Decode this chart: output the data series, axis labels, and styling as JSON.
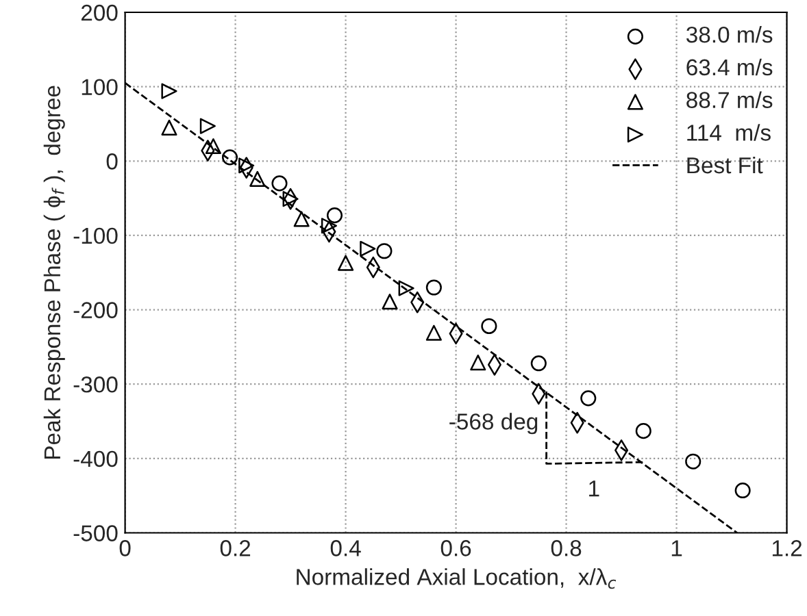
{
  "chart_data": {
    "type": "scatter",
    "xlabel": "Normalized Axial Location,  x/λ$_{c}$",
    "ylabel": "Peak Response Phase ( ϕ$_{f}$ ),  degree",
    "xlim": [
      0,
      1.2
    ],
    "xticks": [
      0,
      0.2,
      0.4,
      0.6,
      0.8,
      1,
      1.2
    ],
    "ylim": [
      -500,
      200
    ],
    "yticks": [
      -500,
      -400,
      -300,
      -200,
      -100,
      0,
      100,
      200
    ],
    "grid": true,
    "legend": "top right",
    "series": [
      {
        "name": "38.0 m/s",
        "color": "#000000",
        "marker": "circle",
        "x": [
          0.19,
          0.28,
          0.38,
          0.47,
          0.56,
          0.66,
          0.75,
          0.84,
          0.94,
          1.03,
          1.12
        ],
        "values": [
          5,
          -30,
          -73,
          -121,
          -170,
          -222,
          -272,
          -319,
          -363,
          -404,
          -443
        ]
      },
      {
        "name": "63.4 m/s",
        "color": "#000000",
        "marker": "diamond",
        "x": [
          0.15,
          0.22,
          0.3,
          0.37,
          0.45,
          0.53,
          0.6,
          0.67,
          0.75,
          0.82,
          0.9
        ],
        "values": [
          14,
          -9,
          -51,
          -95,
          -143,
          -190,
          -232,
          -274,
          -313,
          -352,
          -389
        ]
      },
      {
        "name": "88.7 m/s",
        "color": "#000000",
        "marker": "triangle",
        "x": [
          0.08,
          0.16,
          0.24,
          0.32,
          0.4,
          0.48,
          0.56,
          0.64
        ],
        "values": [
          45,
          20,
          -24,
          -78,
          -137,
          -189,
          -231,
          -271
        ]
      },
      {
        "name": "114  m/s",
        "color": "#000000",
        "marker": "triangle_right",
        "x": [
          0.08,
          0.15,
          0.22,
          0.3,
          0.37,
          0.44,
          0.51
        ],
        "values": [
          94,
          47,
          -6,
          -51,
          -87,
          -118,
          -171
        ]
      },
      {
        "name": "Best Fit",
        "type": "line",
        "color": "#000000",
        "marker": "none",
        "line_style": "dashed",
        "x": [
          0,
          1.11
        ],
        "values": [
          105,
          -500
        ]
      }
    ],
    "annotations": [
      {
        "text": "-568 deg"
      },
      {
        "text": "1"
      }
    ]
  }
}
